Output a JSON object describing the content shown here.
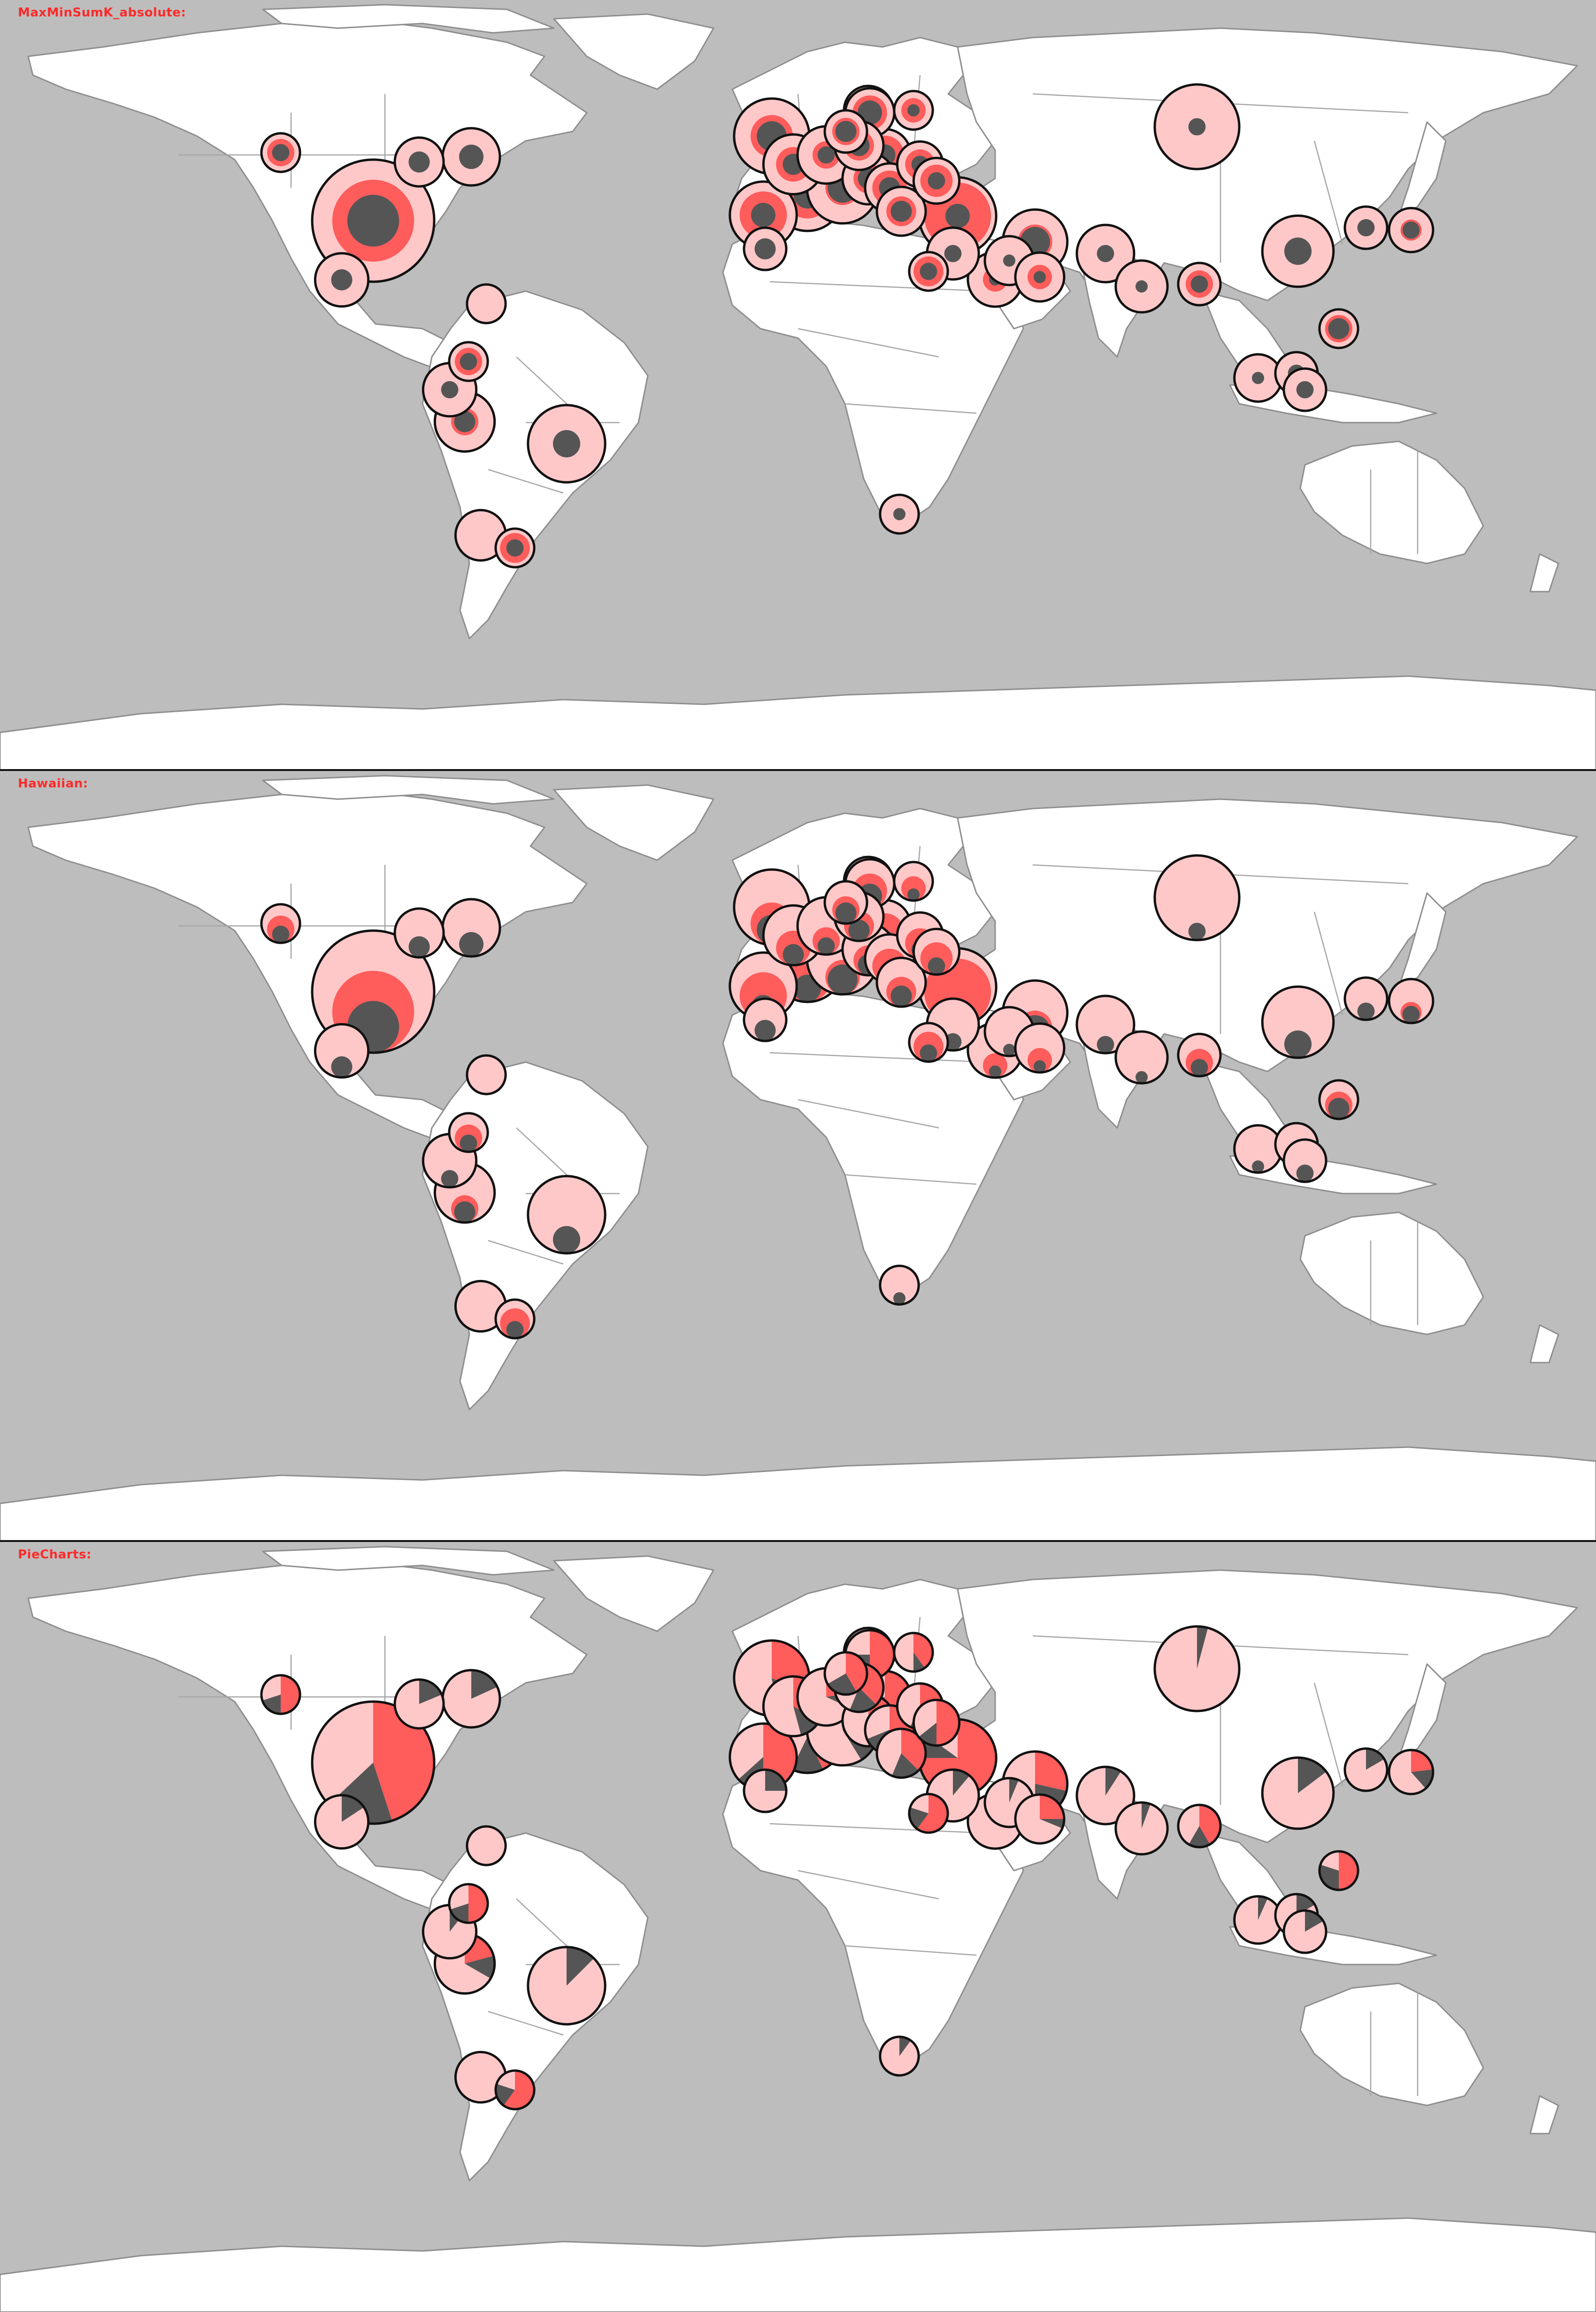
{
  "panels": [
    {
      "id": "maxmin",
      "title": "MaxMinSumK_absolute:",
      "mode": "nested"
    },
    {
      "id": "hawaiian",
      "title": "Hawaiian:",
      "mode": "hawaiian"
    },
    {
      "id": "pie",
      "title": "PieCharts:",
      "mode": "pie"
    }
  ],
  "colors": {
    "ocean": "#bdbdbd",
    "land": "#ffffff",
    "coast": "#8e8e8e",
    "bubble_total": "#ffc8c8",
    "bubble_middle": "#ff5c5c",
    "bubble_inner": "#555555",
    "outline": "#111111",
    "title": "#ff2a2a"
  },
  "symbols": [
    {
      "id": "usa",
      "total": 1.0,
      "middle": 0.45,
      "inner": 0.18
    },
    {
      "id": "canada-w",
      "total": 0.1,
      "middle": 0.05,
      "inner": 0.02
    },
    {
      "id": "canada-c",
      "total": 0.16,
      "middle": 0.0,
      "inner": 0.03
    },
    {
      "id": "canada-e",
      "total": 0.22,
      "middle": 0.0,
      "inner": 0.04
    },
    {
      "id": "mexico",
      "total": 0.19,
      "middle": 0.0,
      "inner": 0.03
    },
    {
      "id": "venezuela",
      "total": 0.1,
      "middle": 0.0,
      "inner": 0.0
    },
    {
      "id": "colombia",
      "total": 0.1,
      "middle": 0.05,
      "inner": 0.02
    },
    {
      "id": "ecuador",
      "total": 0.19,
      "middle": 0.0,
      "inner": 0.02
    },
    {
      "id": "peru",
      "total": 0.24,
      "middle": 0.05,
      "inner": 0.03
    },
    {
      "id": "brazil",
      "total": 0.4,
      "middle": 0.0,
      "inner": 0.05
    },
    {
      "id": "chile",
      "total": 0.17,
      "middle": 0.0,
      "inner": 0.0
    },
    {
      "id": "argentina",
      "total": 0.1,
      "middle": 0.06,
      "inner": 0.02
    },
    {
      "id": "iberia",
      "total": 0.3,
      "middle": 0.15,
      "inner": 0.04
    },
    {
      "id": "uk",
      "total": 0.38,
      "middle": 0.12,
      "inner": 0.06
    },
    {
      "id": "france",
      "total": 0.35,
      "middle": 0.15,
      "inner": 0.05
    },
    {
      "id": "benelux",
      "total": 0.24,
      "middle": 0.08,
      "inner": 0.03
    },
    {
      "id": "germany",
      "total": 0.34,
      "middle": 0.12,
      "inner": 0.07
    },
    {
      "id": "denmark",
      "total": 0.12,
      "middle": 0.05,
      "inner": 0.03
    },
    {
      "id": "norway",
      "total": 0.16,
      "middle": 0.06,
      "inner": 0.03
    },
    {
      "id": "sweden",
      "total": 0.16,
      "middle": 0.08,
      "inner": 0.04
    },
    {
      "id": "finland",
      "total": 0.1,
      "middle": 0.04,
      "inner": 0.01
    },
    {
      "id": "poland",
      "total": 0.18,
      "middle": 0.1,
      "inner": 0.03
    },
    {
      "id": "italy",
      "total": 0.34,
      "middle": 0.08,
      "inner": 0.06
    },
    {
      "id": "swiss",
      "total": 0.22,
      "middle": 0.05,
      "inner": 0.02
    },
    {
      "id": "austria",
      "total": 0.18,
      "middle": 0.06,
      "inner": 0.03
    },
    {
      "id": "czech",
      "total": 0.16,
      "middle": 0.06,
      "inner": 0.03
    },
    {
      "id": "balkans",
      "total": 0.16,
      "middle": 0.08,
      "inner": 0.03
    },
    {
      "id": "greece",
      "total": 0.16,
      "middle": 0.06,
      "inner": 0.03
    },
    {
      "id": "romania",
      "total": 0.14,
      "middle": 0.06,
      "inner": 0.02
    },
    {
      "id": "ukraine",
      "total": 0.14,
      "middle": 0.07,
      "inner": 0.02
    },
    {
      "id": "turkey",
      "total": 0.4,
      "middle": 0.3,
      "inner": 0.04
    },
    {
      "id": "morocco",
      "total": 0.12,
      "middle": 0.0,
      "inner": 0.03
    },
    {
      "id": "egypt",
      "total": 0.1,
      "middle": 0.06,
      "inner": 0.02
    },
    {
      "id": "levant",
      "total": 0.18,
      "middle": 0.0,
      "inner": 0.02
    },
    {
      "id": "iraq",
      "total": 0.16,
      "middle": 0.0,
      "inner": 0.01
    },
    {
      "id": "iran",
      "total": 0.28,
      "middle": 0.08,
      "inner": 0.06
    },
    {
      "id": "saudi",
      "total": 0.2,
      "middle": 0.04,
      "inner": 0.01
    },
    {
      "id": "gulf",
      "total": 0.16,
      "middle": 0.04,
      "inner": 0.01
    },
    {
      "id": "pakistan",
      "total": 0.22,
      "middle": 0.0,
      "inner": 0.02
    },
    {
      "id": "india",
      "total": 0.18,
      "middle": 0.0,
      "inner": 0.01
    },
    {
      "id": "bangladesh",
      "total": 0.12,
      "middle": 0.05,
      "inner": 0.02
    },
    {
      "id": "russia",
      "total": 0.48,
      "middle": 0.0,
      "inner": 0.02
    },
    {
      "id": "china",
      "total": 0.34,
      "middle": 0.0,
      "inner": 0.05
    },
    {
      "id": "korea",
      "total": 0.12,
      "middle": 0.0,
      "inner": 0.02
    },
    {
      "id": "japan",
      "total": 0.13,
      "middle": 0.03,
      "inner": 0.02
    },
    {
      "id": "philippines",
      "total": 0.1,
      "middle": 0.05,
      "inner": 0.03
    },
    {
      "id": "malaysia",
      "total": 0.15,
      "middle": 0.0,
      "inner": 0.01
    },
    {
      "id": "singapore",
      "total": 0.12,
      "middle": 0.0,
      "inner": 0.02
    },
    {
      "id": "indonesia",
      "total": 0.12,
      "middle": 0.0,
      "inner": 0.02
    },
    {
      "id": "south-africa",
      "total": 0.1,
      "middle": 0.0,
      "inner": 0.01
    }
  ]
}
